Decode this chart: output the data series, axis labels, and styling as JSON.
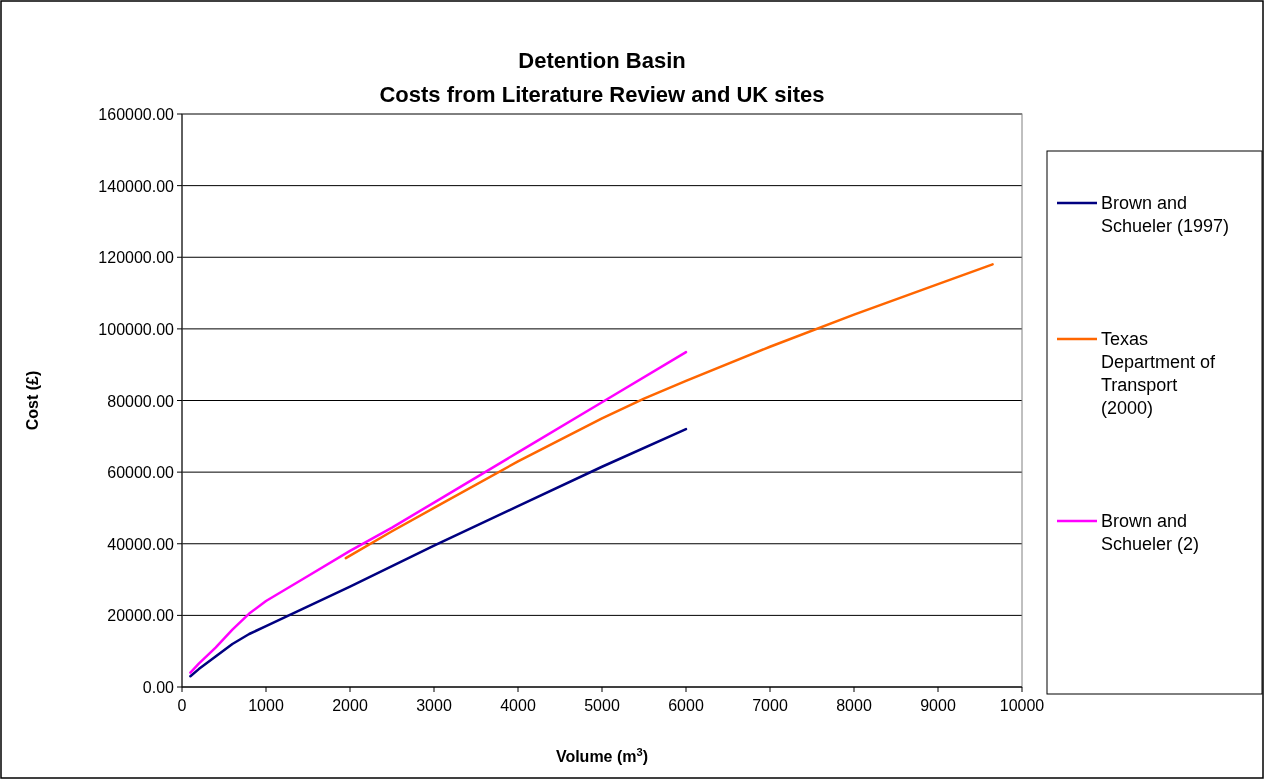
{
  "chart_data": {
    "type": "line",
    "title": "Detention Basin",
    "subtitle": "Costs from Literature Review and UK sites",
    "xlabel": "Volume (m$^{3}$)",
    "ylabel": "Cost (£)",
    "xlim": [
      0,
      10000
    ],
    "xticks": [
      0,
      1000,
      2000,
      3000,
      4000,
      5000,
      6000,
      7000,
      8000,
      9000,
      10000
    ],
    "ylim": [
      0,
      160000
    ],
    "yticks": [
      {
        "value": 0,
        "label": "0.00"
      },
      {
        "value": 20000,
        "label": "20000.00"
      },
      {
        "value": 40000,
        "label": "40000.00"
      },
      {
        "value": 60000,
        "label": "60000.00"
      },
      {
        "value": 80000,
        "label": "80000.00"
      },
      {
        "value": 100000,
        "label": "100000.00"
      },
      {
        "value": 120000,
        "label": "120000.00"
      },
      {
        "value": 140000,
        "label": "140000.00"
      },
      {
        "value": 160000,
        "label": "160000.00"
      }
    ],
    "grid": "y",
    "legend": "right",
    "marker": "none",
    "line_style": "solid",
    "series": [
      {
        "name": "Brown and Schueler (1997)",
        "color": "#000080",
        "x": [
          100,
          200,
          400,
          600,
          800,
          1000,
          1500,
          2000,
          3000,
          4000,
          5000,
          6000
        ],
        "values": [
          3000,
          5000,
          8500,
          12000,
          14800,
          17000,
          22500,
          28000,
          39500,
          50500,
          61500,
          72000
        ]
      },
      {
        "name": "Texas Department of Transport (2000)",
        "color": "#ff6600",
        "x": [
          1950,
          2500,
          3000,
          4000,
          5000,
          5500,
          6000,
          7000,
          8000,
          9000,
          9650
        ],
        "values": [
          36000,
          43500,
          50000,
          63000,
          75000,
          80500,
          85500,
          95000,
          104000,
          112500,
          118000
        ]
      },
      {
        "name": "Brown and Schueler (2)",
        "color": "#ff00ff",
        "x": [
          100,
          200,
          400,
          600,
          800,
          1000,
          1500,
          2000,
          2500,
          3000,
          4000,
          5000,
          6000
        ],
        "values": [
          4000,
          6500,
          11000,
          16000,
          20500,
          24000,
          31000,
          38000,
          44500,
          51500,
          65500,
          79500,
          93500
        ]
      }
    ]
  }
}
